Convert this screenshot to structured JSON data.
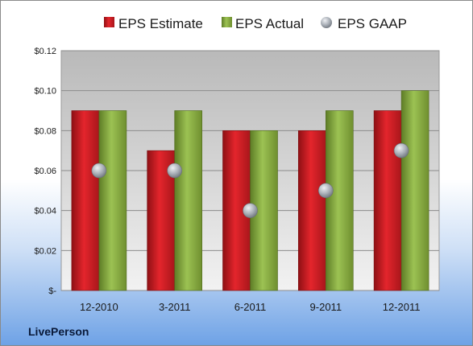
{
  "brand": "LivePerson",
  "colors": {
    "estimate": "#c81e24",
    "actual": "#7fa23a",
    "gaap": "#9aa0a8"
  },
  "chart_data": {
    "type": "bar",
    "categories": [
      "12-2010",
      "3-2011",
      "6-2011",
      "9-2011",
      "12-2011"
    ],
    "series": [
      {
        "name": "EPS Estimate",
        "kind": "bar",
        "values": [
          0.09,
          0.07,
          0.08,
          0.08,
          0.09
        ]
      },
      {
        "name": "EPS Actual",
        "kind": "bar",
        "values": [
          0.09,
          0.09,
          0.08,
          0.09,
          0.1
        ]
      },
      {
        "name": "EPS GAAP",
        "kind": "marker",
        "values": [
          0.06,
          0.06,
          0.04,
          0.05,
          0.07
        ]
      }
    ],
    "ylim": [
      0,
      0.12
    ],
    "yticks": [
      0,
      0.02,
      0.04,
      0.06,
      0.08,
      0.1,
      0.12
    ],
    "ytick_labels": [
      "$-",
      "$0.02",
      "$0.04",
      "$0.06",
      "$0.08",
      "$0.10",
      "$0.12"
    ],
    "legend_position": "top",
    "grid": true
  }
}
